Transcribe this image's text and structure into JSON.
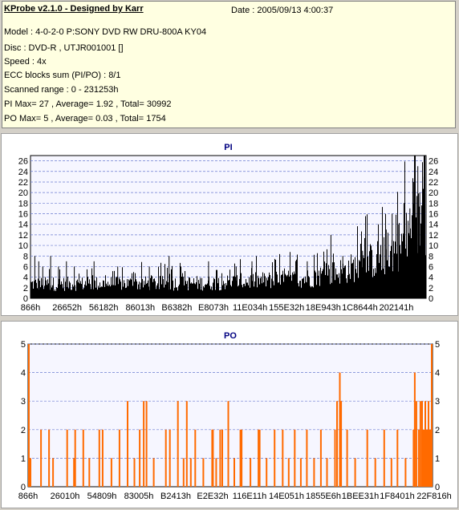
{
  "info": {
    "title": "KProbe v2.1.0 - Designed by Karr",
    "date": "Date : 2005/09/13 4:00:37",
    "lines": [
      "Model : 4-0-2-0 P:SONY    DVD RW DRU-800A  KY04",
      "Disc : DVD-R , UTJR001001 []",
      "Speed : 4x",
      "ECC blocks sum (PI/PO) : 8/1",
      "Scanned range : 0 - 231253h",
      "PI Max= 27 , Average= 1.92 , Total= 30992",
      "PO Max= 5 , Average= 0.03 , Total= 1754"
    ]
  },
  "colors": {
    "background": "#d4d0c8",
    "info_bg": "#ffffe1",
    "pi_bar": "#000000",
    "po_bar": "#ff6a00",
    "title_blue": "#000080",
    "grid": "#6a7bd0"
  },
  "chart_data": [
    {
      "type": "bar",
      "title": "PI",
      "ylim": [
        0,
        27
      ],
      "yticks": [
        0,
        2,
        4,
        6,
        8,
        10,
        12,
        14,
        16,
        18,
        20,
        22,
        24,
        26
      ],
      "xlim": [
        0,
        231253
      ],
      "xtick_labels": [
        "866h",
        "26652h",
        "56182h",
        "86013h",
        "B6382h",
        "E8073h",
        "11E034h",
        "155E32h",
        "18E943h",
        "1C8644h",
        "202141h"
      ],
      "grid": true,
      "profile": [
        [
          0,
          3.0
        ],
        [
          0.45,
          3.2
        ],
        [
          0.7,
          4.2
        ],
        [
          0.8,
          6.0
        ],
        [
          0.9,
          9.0
        ],
        [
          0.96,
          13.0
        ],
        [
          1.0,
          18.0
        ]
      ],
      "peaks": [
        [
          0.01,
          8
        ],
        [
          0.02,
          7
        ],
        [
          0.03,
          6
        ],
        [
          0.05,
          8
        ],
        [
          0.07,
          6
        ],
        [
          0.09,
          7
        ],
        [
          0.11,
          6
        ],
        [
          0.16,
          7
        ],
        [
          0.22,
          6
        ],
        [
          0.3,
          6
        ],
        [
          0.35,
          8
        ],
        [
          0.38,
          6
        ],
        [
          0.45,
          7
        ],
        [
          0.52,
          6
        ],
        [
          0.56,
          7
        ],
        [
          0.62,
          6
        ],
        [
          0.7,
          7
        ],
        [
          0.76,
          12
        ],
        [
          0.79,
          8
        ],
        [
          0.84,
          9
        ],
        [
          0.86,
          10
        ],
        [
          0.88,
          14
        ],
        [
          0.9,
          13
        ],
        [
          0.915,
          16
        ],
        [
          0.93,
          14
        ],
        [
          0.945,
          18
        ],
        [
          0.96,
          17
        ],
        [
          0.97,
          22
        ],
        [
          0.98,
          25
        ],
        [
          0.985,
          20
        ],
        [
          0.992,
          23
        ],
        [
          0.996,
          24
        ],
        [
          0.998,
          27
        ]
      ]
    },
    {
      "type": "bar",
      "title": "PO",
      "ylim": [
        0,
        5
      ],
      "yticks": [
        0,
        1,
        2,
        3,
        4,
        5
      ],
      "xlim": [
        0,
        231253
      ],
      "xtick_labels": [
        "866h",
        "26010h",
        "54809h",
        "83005h",
        "B2413h",
        "E2E32h",
        "116E11h",
        "14E051h",
        "1855E6h",
        "1BEE31h",
        "1F8401h",
        "22F816h"
      ],
      "grid": true,
      "spikes": [
        [
          0.0,
          5
        ],
        [
          0.004,
          1
        ],
        [
          0.03,
          2
        ],
        [
          0.05,
          2
        ],
        [
          0.06,
          1
        ],
        [
          0.095,
          2
        ],
        [
          0.112,
          1
        ],
        [
          0.115,
          2
        ],
        [
          0.135,
          2
        ],
        [
          0.15,
          1
        ],
        [
          0.175,
          2
        ],
        [
          0.183,
          2
        ],
        [
          0.205,
          1
        ],
        [
          0.225,
          2
        ],
        [
          0.245,
          3
        ],
        [
          0.262,
          1
        ],
        [
          0.275,
          2
        ],
        [
          0.285,
          3
        ],
        [
          0.292,
          3
        ],
        [
          0.31,
          1
        ],
        [
          0.34,
          2
        ],
        [
          0.35,
          2
        ],
        [
          0.37,
          3
        ],
        [
          0.384,
          1
        ],
        [
          0.392,
          3
        ],
        [
          0.402,
          1
        ],
        [
          0.413,
          2
        ],
        [
          0.433,
          1
        ],
        [
          0.455,
          2
        ],
        [
          0.457,
          2
        ],
        [
          0.465,
          1
        ],
        [
          0.475,
          2
        ],
        [
          0.48,
          2
        ],
        [
          0.495,
          3
        ],
        [
          0.51,
          1
        ],
        [
          0.525,
          2
        ],
        [
          0.528,
          2
        ],
        [
          0.55,
          1
        ],
        [
          0.57,
          2
        ],
        [
          0.573,
          2
        ],
        [
          0.59,
          1
        ],
        [
          0.61,
          2
        ],
        [
          0.63,
          2
        ],
        [
          0.645,
          1
        ],
        [
          0.66,
          2
        ],
        [
          0.675,
          1
        ],
        [
          0.69,
          2
        ],
        [
          0.708,
          1
        ],
        [
          0.725,
          2
        ],
        [
          0.74,
          1
        ],
        [
          0.76,
          2
        ],
        [
          0.765,
          3
        ],
        [
          0.772,
          4
        ],
        [
          0.775,
          3
        ],
        [
          0.79,
          2
        ],
        [
          0.81,
          1
        ],
        [
          0.84,
          2
        ],
        [
          0.86,
          1
        ],
        [
          0.882,
          2
        ],
        [
          0.9,
          1
        ],
        [
          0.915,
          2
        ],
        [
          0.935,
          1
        ],
        [
          0.955,
          2
        ],
        [
          0.958,
          4
        ],
        [
          0.962,
          3
        ],
        [
          0.968,
          2
        ],
        [
          0.972,
          3
        ],
        [
          0.976,
          3
        ],
        [
          0.98,
          2
        ],
        [
          0.984,
          3
        ],
        [
          0.988,
          2
        ],
        [
          0.992,
          3
        ],
        [
          0.996,
          2
        ],
        [
          1.0,
          5
        ]
      ]
    }
  ]
}
